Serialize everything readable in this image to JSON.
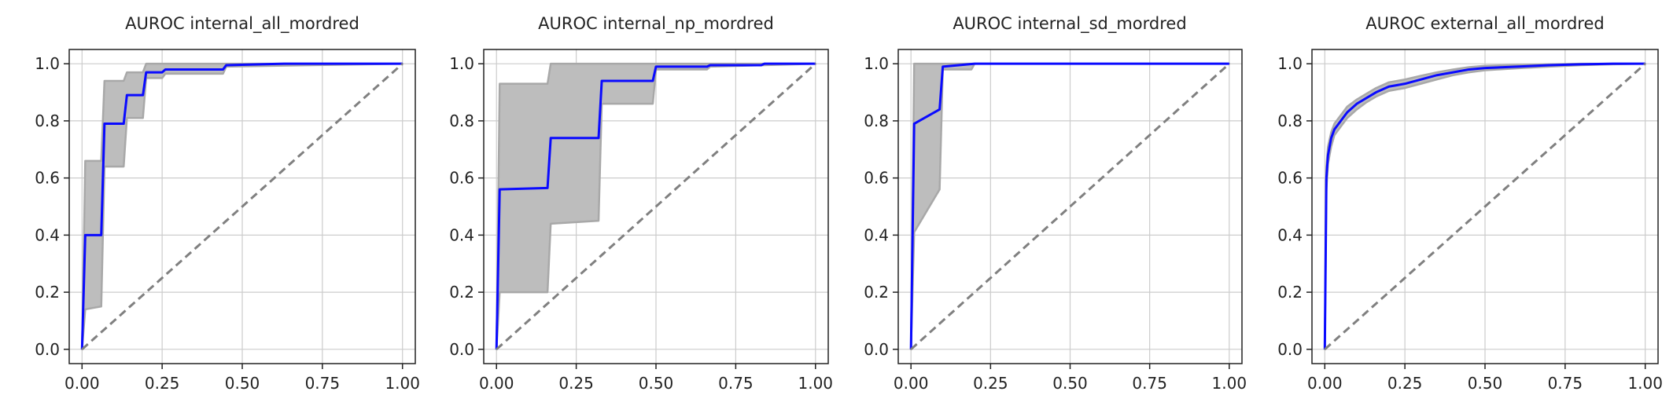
{
  "figure": {
    "colors": {
      "roc": "#0a0aff",
      "band": "#bdbdbd",
      "band_edge": "#a8a8a8",
      "chance": "#808080",
      "grid": "#cccccc",
      "axes": "#222222"
    }
  },
  "chart_data": [
    {
      "type": "line",
      "title": "AUROC internal_all_mordred",
      "xlabel": "",
      "ylabel": "",
      "xlim": [
        -0.04,
        1.04
      ],
      "ylim": [
        -0.05,
        1.05
      ],
      "xticks": [
        "0.00",
        "0.25",
        "0.50",
        "0.75",
        "1.00"
      ],
      "yticks": [
        "0.0",
        "0.2",
        "0.4",
        "0.6",
        "0.8",
        "1.0"
      ],
      "grid": true,
      "series": [
        {
          "role": "roc",
          "x": [
            0,
            0.01,
            0.06,
            0.07,
            0.13,
            0.14,
            0.19,
            0.2,
            0.25,
            0.26,
            0.44,
            0.45,
            0.63,
            1.0
          ],
          "y": [
            0,
            0.4,
            0.4,
            0.79,
            0.79,
            0.89,
            0.89,
            0.97,
            0.97,
            0.98,
            0.98,
            0.995,
            1.0,
            1.0
          ]
        },
        {
          "role": "chance",
          "x": [
            0,
            1
          ],
          "y": [
            0,
            1
          ]
        }
      ],
      "band": {
        "upper": {
          "x": [
            0,
            0.01,
            0.06,
            0.07,
            0.13,
            0.14,
            0.19,
            0.2,
            0.25,
            0.26,
            0.44,
            0.45,
            1.0
          ],
          "y": [
            0,
            0.66,
            0.66,
            0.94,
            0.94,
            0.97,
            0.97,
            1.0,
            1.0,
            1.0,
            1.0,
            1.0,
            1.0
          ]
        },
        "lower": {
          "x": [
            0,
            0.01,
            0.06,
            0.07,
            0.13,
            0.14,
            0.19,
            0.2,
            0.25,
            0.26,
            0.44,
            0.45,
            1.0
          ],
          "y": [
            0,
            0.14,
            0.15,
            0.64,
            0.64,
            0.81,
            0.81,
            0.95,
            0.95,
            0.965,
            0.965,
            0.99,
            1.0
          ]
        }
      }
    },
    {
      "type": "line",
      "title": "AUROC internal_np_mordred",
      "xlabel": "",
      "ylabel": "",
      "xlim": [
        -0.04,
        1.04
      ],
      "ylim": [
        -0.05,
        1.05
      ],
      "xticks": [
        "0.00",
        "0.25",
        "0.50",
        "0.75",
        "1.00"
      ],
      "yticks": [
        "0.0",
        "0.2",
        "0.4",
        "0.6",
        "0.8",
        "1.0"
      ],
      "grid": true,
      "series": [
        {
          "role": "roc",
          "x": [
            0,
            0.01,
            0.16,
            0.17,
            0.32,
            0.33,
            0.49,
            0.5,
            0.66,
            0.67,
            0.83,
            0.84,
            1.0
          ],
          "y": [
            0,
            0.56,
            0.565,
            0.74,
            0.74,
            0.94,
            0.94,
            0.99,
            0.99,
            0.995,
            0.995,
            1.0,
            1.0
          ]
        },
        {
          "role": "chance",
          "x": [
            0,
            1
          ],
          "y": [
            0,
            1
          ]
        }
      ],
      "band": {
        "upper": {
          "x": [
            0,
            0.01,
            0.16,
            0.17,
            0.5,
            1.0
          ],
          "y": [
            0,
            0.93,
            0.93,
            1.0,
            1.0,
            1.0
          ]
        },
        "lower": {
          "x": [
            0,
            0.01,
            0.16,
            0.17,
            0.32,
            0.33,
            0.49,
            0.5,
            0.66,
            0.67,
            1.0
          ],
          "y": [
            0,
            0.2,
            0.2,
            0.44,
            0.45,
            0.86,
            0.86,
            0.98,
            0.98,
            0.99,
            1.0
          ]
        }
      }
    },
    {
      "type": "line",
      "title": "AUROC internal_sd_mordred",
      "xlabel": "",
      "ylabel": "",
      "xlim": [
        -0.04,
        1.04
      ],
      "ylim": [
        -0.05,
        1.05
      ],
      "xticks": [
        "0.00",
        "0.25",
        "0.50",
        "0.75",
        "1.00"
      ],
      "yticks": [
        "0.0",
        "0.2",
        "0.4",
        "0.6",
        "0.8",
        "1.0"
      ],
      "grid": true,
      "series": [
        {
          "role": "roc",
          "x": [
            0,
            0.01,
            0.09,
            0.1,
            0.2,
            1.0
          ],
          "y": [
            0,
            0.79,
            0.84,
            0.99,
            1.0,
            1.0
          ]
        },
        {
          "role": "chance",
          "x": [
            0,
            1
          ],
          "y": [
            0,
            1
          ]
        }
      ],
      "band": {
        "upper": {
          "x": [
            0,
            0.01,
            0.1,
            0.2,
            1.0
          ],
          "y": [
            0,
            1.0,
            1.0,
            1.0,
            1.0
          ]
        },
        "lower": {
          "x": [
            0,
            0.01,
            0.09,
            0.1,
            0.19,
            0.2,
            1.0
          ],
          "y": [
            0,
            0.41,
            0.56,
            0.98,
            0.98,
            1.0,
            1.0
          ]
        }
      }
    },
    {
      "type": "line",
      "title": "AUROC external_all_mordred",
      "xlabel": "",
      "ylabel": "",
      "xlim": [
        -0.04,
        1.04
      ],
      "ylim": [
        -0.05,
        1.05
      ],
      "xticks": [
        "0.00",
        "0.25",
        "0.50",
        "0.75",
        "1.00"
      ],
      "yticks": [
        "0.0",
        "0.2",
        "0.4",
        "0.6",
        "0.8",
        "1.0"
      ],
      "grid": true,
      "series": [
        {
          "role": "roc",
          "x": [
            0,
            0.005,
            0.01,
            0.02,
            0.03,
            0.05,
            0.07,
            0.1,
            0.13,
            0.16,
            0.2,
            0.25,
            0.3,
            0.35,
            0.4,
            0.45,
            0.5,
            0.6,
            0.7,
            0.8,
            0.9,
            1.0
          ],
          "y": [
            0,
            0.6,
            0.68,
            0.74,
            0.77,
            0.8,
            0.83,
            0.86,
            0.88,
            0.9,
            0.92,
            0.93,
            0.945,
            0.96,
            0.97,
            0.98,
            0.985,
            0.99,
            0.995,
            0.998,
            1.0,
            1.0
          ]
        },
        {
          "role": "chance",
          "x": [
            0,
            1
          ],
          "y": [
            0,
            1
          ]
        }
      ],
      "band": {
        "upper": {
          "x": [
            0,
            0.005,
            0.01,
            0.02,
            0.03,
            0.05,
            0.07,
            0.1,
            0.13,
            0.16,
            0.2,
            0.25,
            0.3,
            0.35,
            0.4,
            0.45,
            0.5,
            0.6,
            0.7,
            0.8,
            0.9,
            1.0
          ],
          "y": [
            0,
            0.64,
            0.71,
            0.76,
            0.79,
            0.82,
            0.85,
            0.875,
            0.895,
            0.915,
            0.935,
            0.945,
            0.958,
            0.97,
            0.98,
            0.988,
            0.993,
            0.996,
            0.998,
            1.0,
            1.0,
            1.0
          ]
        },
        "lower": {
          "x": [
            0,
            0.005,
            0.01,
            0.02,
            0.03,
            0.05,
            0.07,
            0.1,
            0.13,
            0.16,
            0.2,
            0.25,
            0.3,
            0.35,
            0.4,
            0.45,
            0.5,
            0.6,
            0.7,
            0.8,
            0.9,
            1.0
          ],
          "y": [
            0,
            0.56,
            0.65,
            0.71,
            0.75,
            0.78,
            0.81,
            0.84,
            0.865,
            0.885,
            0.905,
            0.915,
            0.93,
            0.945,
            0.96,
            0.97,
            0.977,
            0.984,
            0.99,
            0.995,
            0.998,
            1.0
          ]
        }
      }
    }
  ]
}
